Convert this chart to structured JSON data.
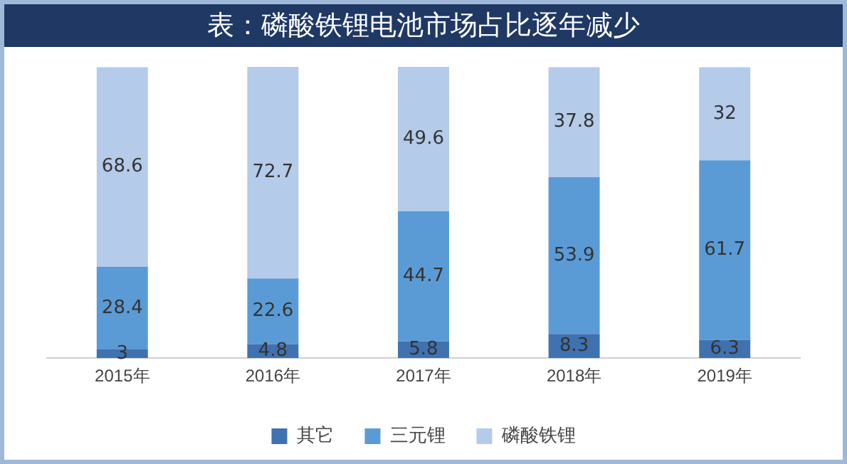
{
  "chart_data": {
    "type": "bar",
    "title": "表：磷酸铁锂电池市场占比逐年减少",
    "categories": [
      "2015年",
      "2016年",
      "2017年",
      "2018年",
      "2019年"
    ],
    "series": [
      {
        "name": "其它",
        "color": "#3f72af",
        "values": [
          3,
          4.8,
          5.8,
          8.3,
          6.3
        ]
      },
      {
        "name": "三元锂",
        "color": "#5b9bd5",
        "values": [
          28.4,
          22.6,
          44.7,
          53.9,
          61.7
        ]
      },
      {
        "name": "磷酸铁锂",
        "color": "#b4cbea",
        "values": [
          68.6,
          72.7,
          49.6,
          37.8,
          32
        ]
      }
    ],
    "stacked": true,
    "ylim": [
      0,
      100.1
    ],
    "tick_labels": "x",
    "grid": false,
    "legend": "bottom",
    "data_labels": true
  }
}
